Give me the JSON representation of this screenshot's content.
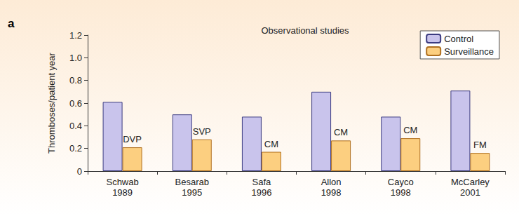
{
  "chart_data": {
    "type": "bar",
    "panel": "a",
    "title": "Observational studies",
    "y_label": "Thromboses/patient year",
    "categories": [
      "Schwab\n1989",
      "Besarab\n1995",
      "Safa\n1996",
      "Allon\n1998",
      "Cayco\n1998",
      "McCarley\n2001"
    ],
    "series": [
      {
        "name": "Control",
        "color": "#c9c4ec",
        "values": [
          0.61,
          0.5,
          0.48,
          0.7,
          0.48,
          0.71
        ]
      },
      {
        "name": "Surveillance",
        "color": "#fccf80",
        "values": [
          0.21,
          0.28,
          0.17,
          0.27,
          0.29,
          0.16
        ],
        "annotations": [
          "DVP",
          "SVP",
          "CM",
          "CM",
          "CM",
          "FM"
        ]
      }
    ],
    "ylim": [
      0,
      1.2
    ],
    "yticks": [
      0,
      0.2,
      0.4,
      0.6,
      0.8,
      {
        "value": 1,
        "label": "1.0"
      },
      1.2
    ],
    "grid": false,
    "legend": "upper right"
  }
}
